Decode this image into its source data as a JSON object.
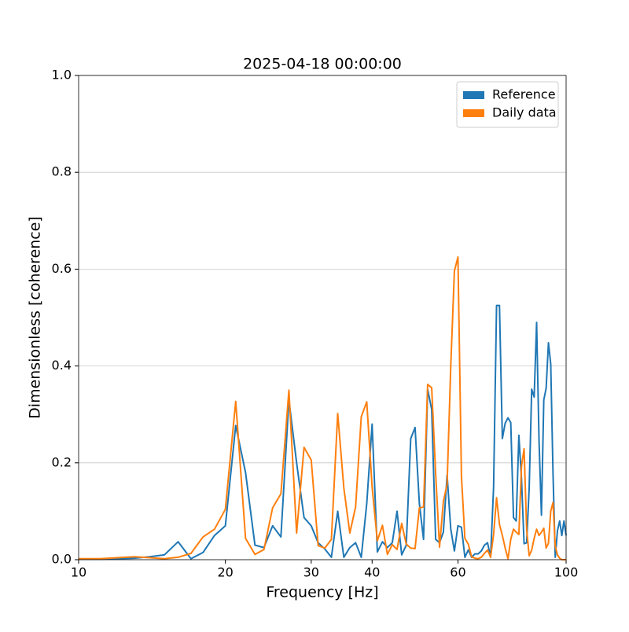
{
  "chart_data": {
    "type": "line",
    "title": "2025-04-18 00:00:00",
    "x_label": "Frequency [Hz]",
    "y_label": "Dimensionless [coherence]",
    "x": [
      10,
      11,
      12,
      13,
      14,
      15,
      16,
      17,
      18,
      19,
      20,
      21,
      22,
      23,
      24,
      25,
      26,
      27,
      28,
      29,
      30,
      31,
      32,
      33,
      34,
      35,
      36,
      37,
      38,
      39,
      40,
      41,
      42,
      43,
      44,
      45,
      46,
      47,
      48,
      49,
      50,
      51,
      52,
      53,
      54,
      55,
      56,
      57,
      58,
      59,
      60,
      61,
      62,
      63,
      64,
      65,
      66,
      67,
      68,
      69,
      70,
      71,
      72,
      73,
      74,
      75,
      76,
      77,
      78,
      79,
      80,
      81,
      82,
      83,
      84,
      85,
      86,
      87,
      88,
      89,
      90,
      91,
      92,
      93,
      94,
      95,
      96,
      97,
      98,
      99,
      100
    ],
    "series": [
      {
        "name": "Reference",
        "color": "#1f77b4",
        "values": [
          0.001,
          0.001,
          0.002,
          0.003,
          0.006,
          0.01,
          0.037,
          0.002,
          0.015,
          0.05,
          0.07,
          0.277,
          0.18,
          0.03,
          0.025,
          0.07,
          0.047,
          0.33,
          0.2,
          0.087,
          0.07,
          0.035,
          0.022,
          0.005,
          0.1,
          0.005,
          0.025,
          0.035,
          0.005,
          0.116,
          0.28,
          0.016,
          0.037,
          0.025,
          0.035,
          0.1,
          0.01,
          0.03,
          0.25,
          0.273,
          0.116,
          0.042,
          0.352,
          0.31,
          0.042,
          0.035,
          0.057,
          0.175,
          0.063,
          0.018,
          0.07,
          0.067,
          0.005,
          0.02,
          0.005,
          0.012,
          0.012,
          0.018,
          0.03,
          0.035,
          0.005,
          0.15,
          0.525,
          0.525,
          0.25,
          0.282,
          0.293,
          0.283,
          0.087,
          0.08,
          0.257,
          0.167,
          0.033,
          0.035,
          0.148,
          0.352,
          0.336,
          0.49,
          0.245,
          0.092,
          0.33,
          0.354,
          0.448,
          0.404,
          0.18,
          0.005,
          0.06,
          0.08,
          0.05,
          0.08,
          0.05
        ]
      },
      {
        "name": "Daily data",
        "color": "#ff7f0e",
        "values": [
          0.002,
          0.002,
          0.004,
          0.006,
          0.004,
          0.002,
          0.005,
          0.013,
          0.047,
          0.063,
          0.104,
          0.327,
          0.044,
          0.011,
          0.021,
          0.107,
          0.136,
          0.35,
          0.055,
          0.232,
          0.206,
          0.029,
          0.024,
          0.042,
          0.302,
          0.148,
          0.055,
          0.109,
          0.295,
          0.326,
          0.15,
          0.039,
          0.071,
          0.011,
          0.031,
          0.021,
          0.075,
          0.032,
          0.024,
          0.023,
          0.107,
          0.109,
          0.362,
          0.355,
          0.178,
          0.026,
          0.12,
          0.156,
          0.401,
          0.596,
          0.625,
          0.172,
          0.044,
          0.032,
          0.006,
          0.003,
          0.002,
          0.005,
          0.013,
          0.02,
          0.005,
          0.052,
          0.128,
          0.073,
          0.05,
          0.024,
          0.002,
          0.042,
          0.063,
          0.057,
          0.052,
          0.193,
          0.229,
          0.062,
          0.008,
          0.02,
          0.044,
          0.063,
          0.05,
          0.057,
          0.065,
          0.024,
          0.034,
          0.1,
          0.118,
          0.028,
          0.01,
          0.003,
          0,
          0,
          0
        ]
      }
    ],
    "xscale": "log",
    "xlim": [
      10,
      100
    ],
    "xticks": [
      10,
      20,
      30,
      40,
      60,
      100
    ],
    "ylim": [
      0,
      1
    ],
    "yticks": [
      {
        "value": 0,
        "label": "0.0"
      },
      0.2,
      0.4,
      0.6,
      0.8,
      {
        "value": 1,
        "label": "1.0"
      }
    ],
    "grid": true,
    "legend": "upper right"
  }
}
